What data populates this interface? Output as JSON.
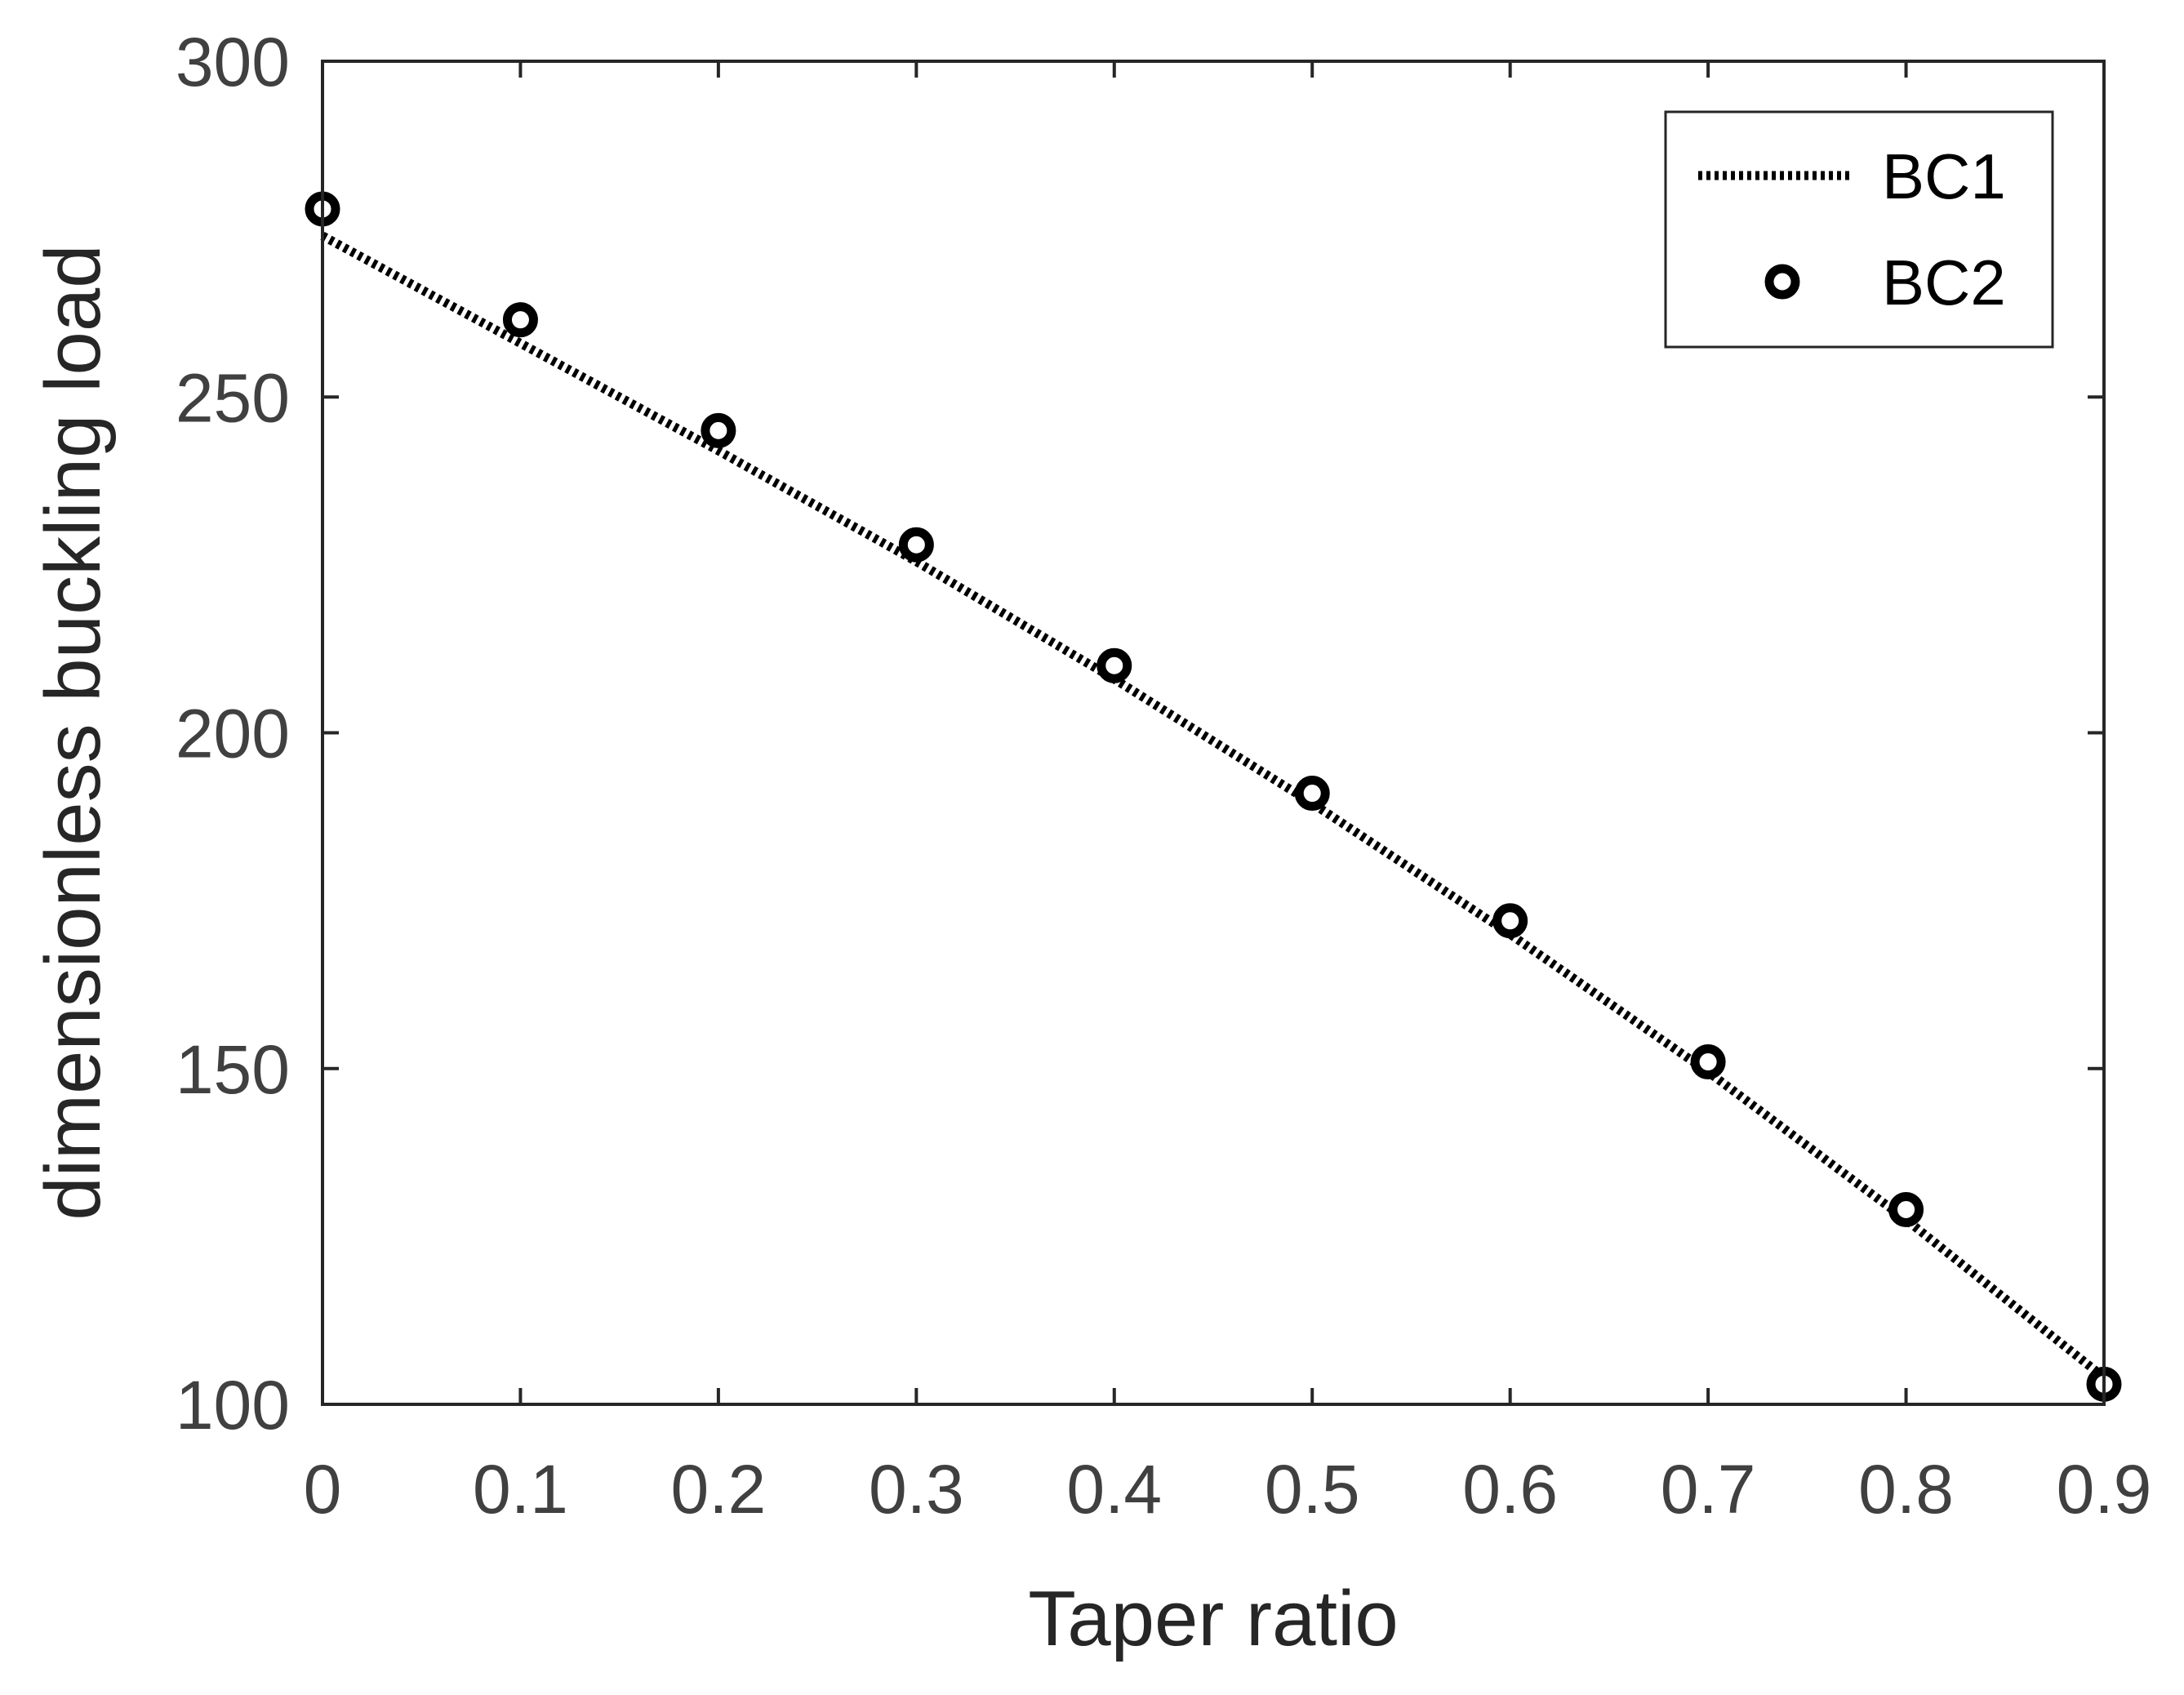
{
  "chart_data": {
    "type": "line",
    "title": "",
    "xlabel": "Taper ratio",
    "ylabel": "dimensionless buckling load",
    "xlim": [
      0,
      0.9
    ],
    "ylim": [
      100,
      300
    ],
    "xticks": [
      "0",
      "0.1",
      "0.2",
      "0.3",
      "0.4",
      "0.5",
      "0.6",
      "0.7",
      "0.8",
      "0.9"
    ],
    "yticks": [
      "100",
      "150",
      "200",
      "250",
      "300"
    ],
    "grid": false,
    "legend_position": "top-right",
    "x": [
      0,
      0.1,
      0.2,
      0.3,
      0.4,
      0.5,
      0.6,
      0.7,
      0.8,
      0.9
    ],
    "series": [
      {
        "name": "BC1",
        "style": "dotted-line",
        "color": "#000000",
        "values": [
          274,
          258,
          242,
          225.5,
          208,
          189.5,
          170,
          149.5,
          127.5,
          104
        ]
      },
      {
        "name": "BC2",
        "style": "circle-markers",
        "color": "#000000",
        "values": [
          278,
          261.5,
          245,
          228,
          210,
          191,
          172,
          151,
          129,
          103
        ]
      }
    ]
  }
}
